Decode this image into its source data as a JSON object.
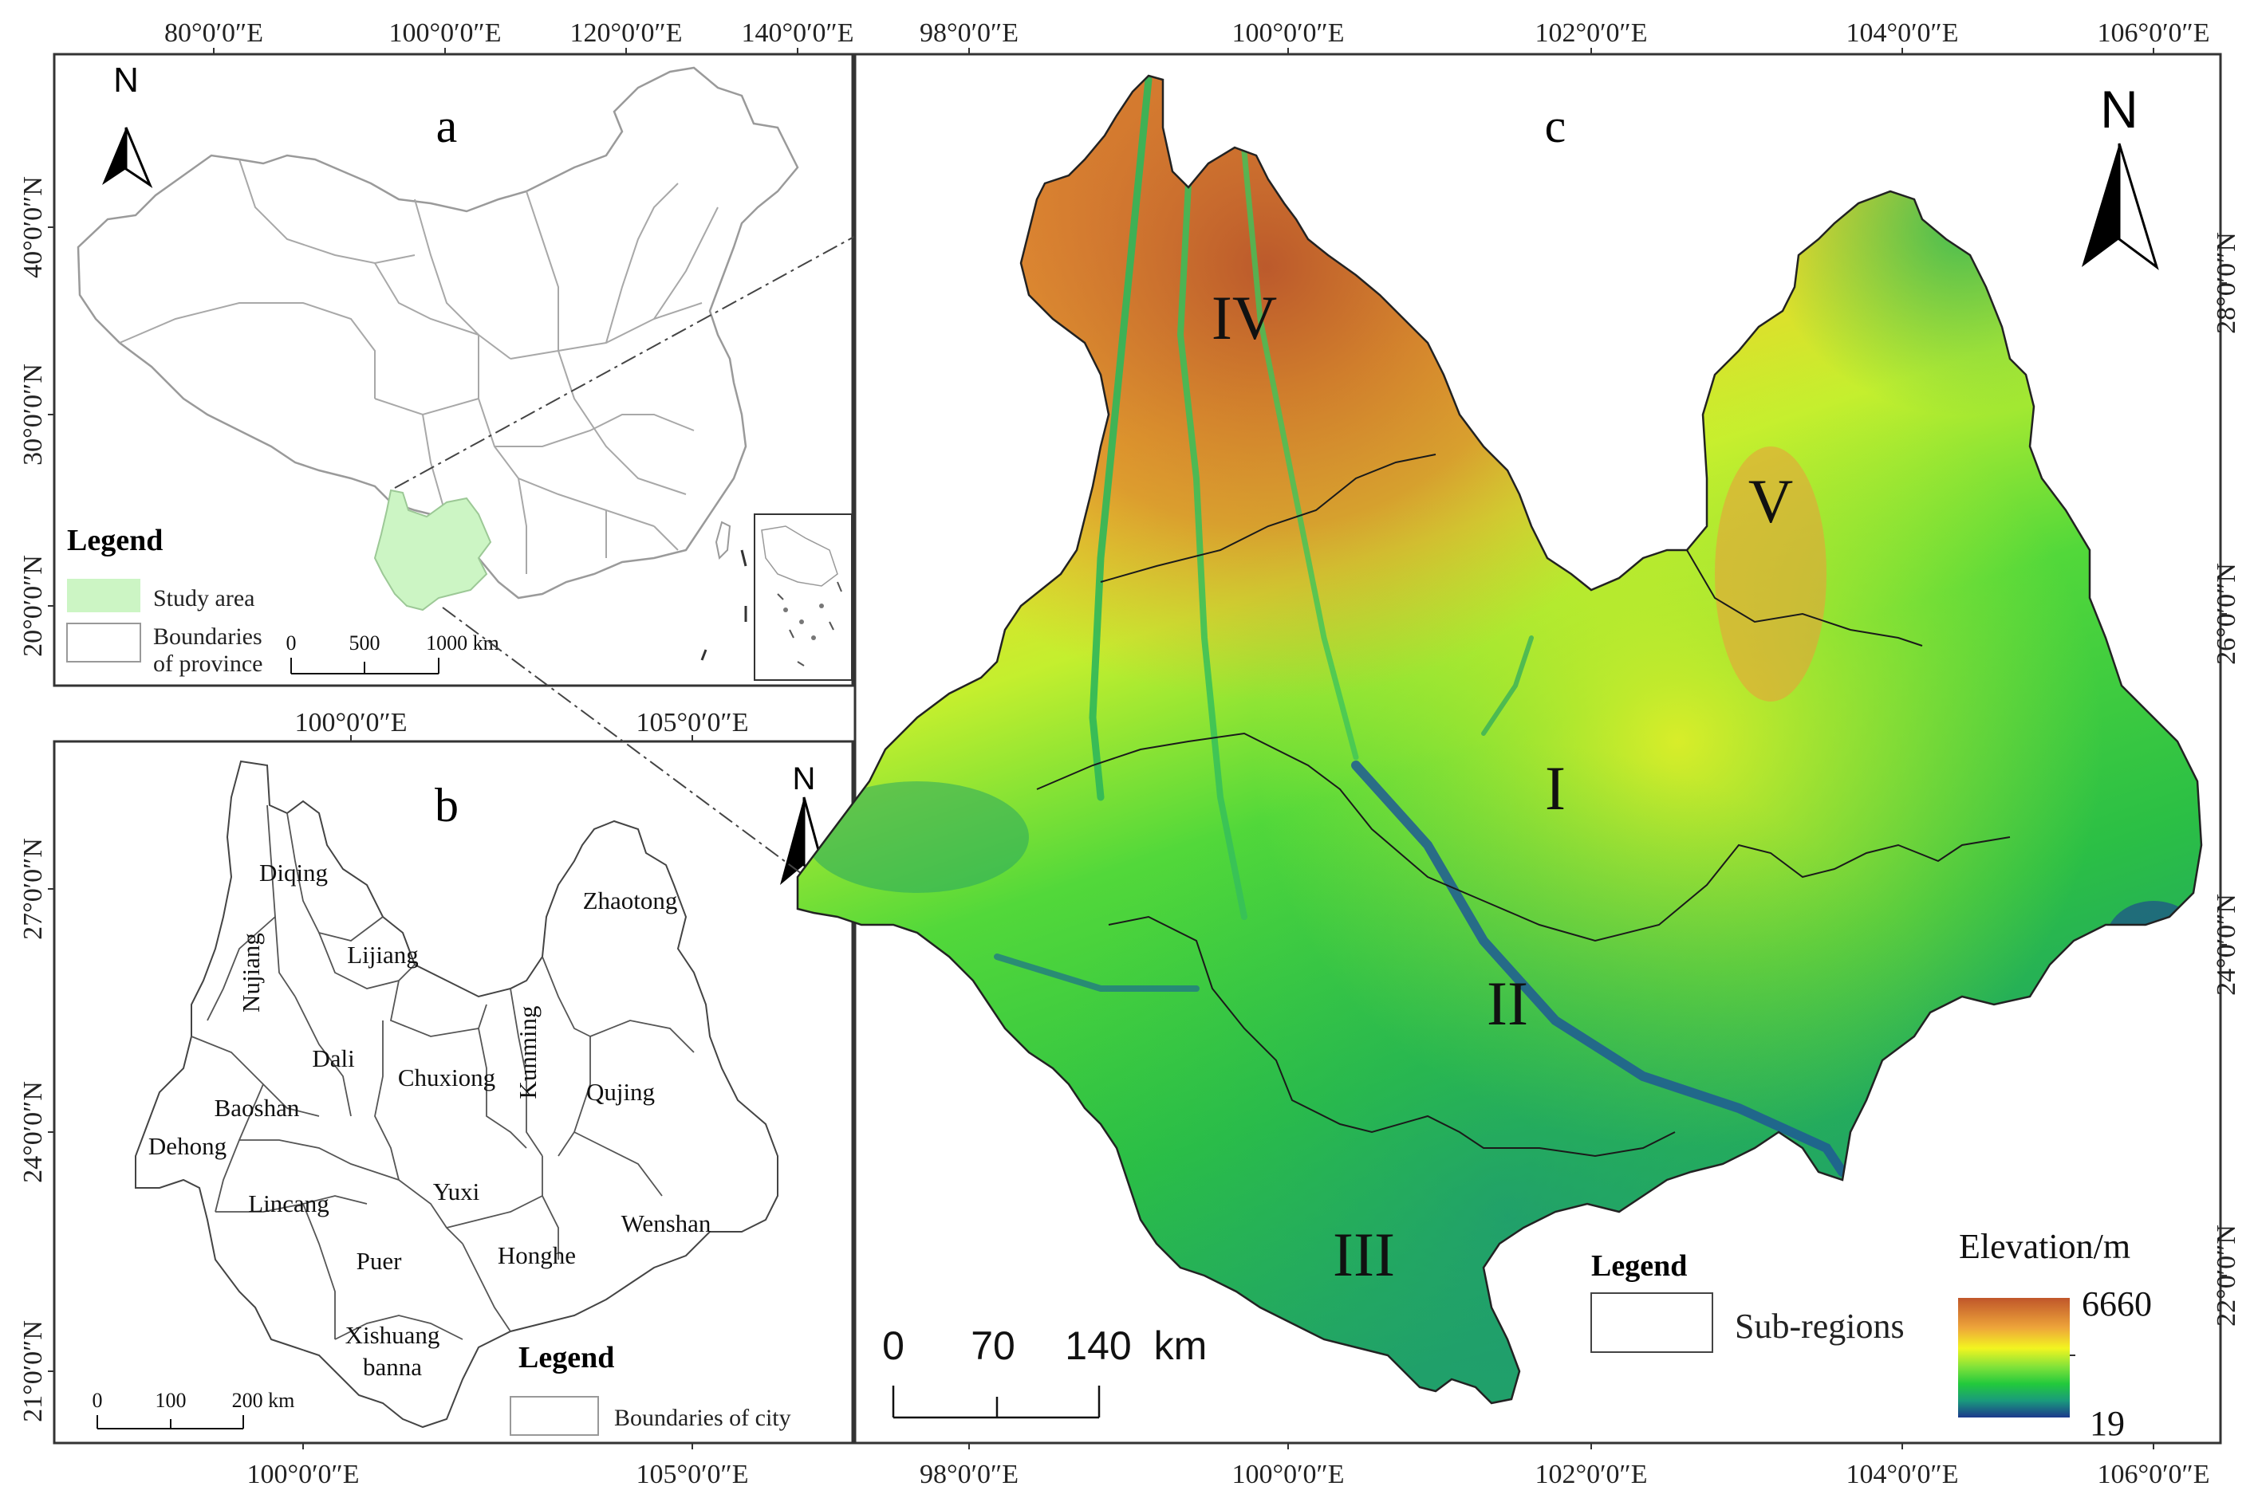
{
  "panels": {
    "a": {
      "letter": "a",
      "north": "N",
      "top_coords": [
        "80°0′0″E",
        "100°0′0″E",
        "120°0′0″E",
        "140°0′0″E"
      ],
      "left_coords": [
        "40°0′0″N",
        "30°0′0″N",
        "20°0′0″N"
      ],
      "legend": {
        "title": "Legend",
        "items": [
          {
            "label": "Study area",
            "color": "#ccf5c4"
          },
          {
            "label_line1": "Boundaries",
            "label_line2": "of province",
            "color": "#ffffff"
          }
        ]
      },
      "scale": [
        "0",
        "500",
        "1000 km"
      ]
    },
    "b": {
      "letter": "b",
      "north": "N",
      "top_coords": [
        "100°0′0″E",
        "105°0′0″E"
      ],
      "bottom_coords": [
        "100°0′0″E",
        "105°0′0″E"
      ],
      "left_coords": [
        "27°0′0″N",
        "24°0′0″N",
        "21°0′0″N"
      ],
      "cities": [
        "Diqing",
        "Nujiang",
        "Lijiang",
        "Dali",
        "Chuxiong",
        "Kunming",
        "Zhaotong",
        "Qujing",
        "Baoshan",
        "Dehong",
        "Lincang",
        "Yuxi",
        "Puer",
        "Honghe",
        "Wenshan",
        "Xishuang",
        "banna"
      ],
      "legend": {
        "title": "Legend",
        "item": "Boundaries of city"
      },
      "scale": [
        "0",
        "100",
        "200 km"
      ]
    },
    "c": {
      "letter": "c",
      "north": "N",
      "top_coords": [
        "98°0′0″E",
        "100°0′0″E",
        "102°0′0″E",
        "104°0′0″E",
        "106°0′0″E"
      ],
      "bottom_coords": [
        "98°0′0″E",
        "100°0′0″E",
        "102°0′0″E",
        "104°0′0″E",
        "106°0′0″E"
      ],
      "right_coords": [
        "28°0′0″N",
        "26°0′0″N",
        "24°0′0″N",
        "22°0′0″N"
      ],
      "regions": [
        "I",
        "II",
        "III",
        "IV",
        "V"
      ],
      "legend": {
        "title": "Legend",
        "item": "Sub-regions"
      },
      "scale": [
        "0",
        "70",
        "140",
        "km"
      ],
      "elevation": {
        "title": "Elevation/m",
        "max": "6660",
        "min": "19"
      },
      "ramp_colors": [
        "#c0562a",
        "#e8a13a",
        "#f5f51f",
        "#8fe83a",
        "#2fd23a",
        "#1f9e7a",
        "#1c3f8e"
      ]
    }
  }
}
